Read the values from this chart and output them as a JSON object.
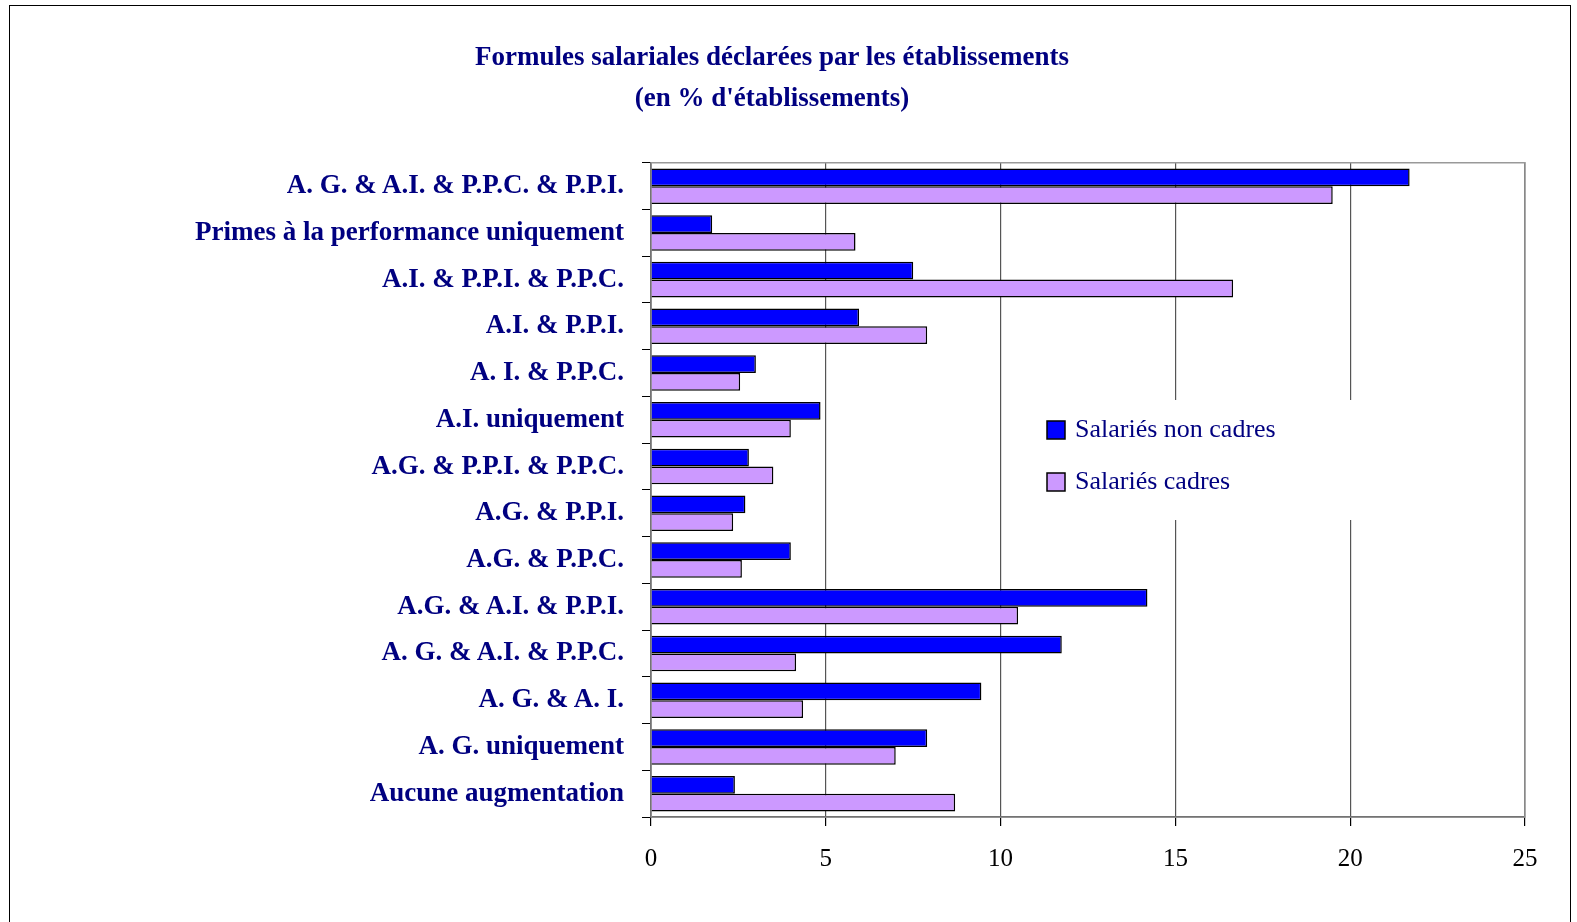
{
  "chart_data": {
    "type": "bar",
    "orientation": "horizontal",
    "title": "Formules salariales déclarées par les établissements",
    "subtitle": "(en % d'établissements)",
    "categories": [
      "A. G. & A.I. & P.P.C. & P.P.I.",
      "Primes à la performance uniquement",
      "A.I. & P.P.I. & P.P.C.",
      "A.I. & P.P.I.",
      "A. I. & P.P.C.",
      "A.I. uniquement",
      "A.G. & P.P.I. & P.P.C.",
      "A.G. & P.P.I.",
      "A.G. & P.P.C.",
      "A.G. & A.I. & P.P.I.",
      "A. G. & A.I. & P.P.C.",
      "A. G. & A. I.",
      "A. G. uniquement",
      "Aucune augmentation"
    ],
    "series": [
      {
        "name": "Salariés non cadres",
        "color": "#0000ff",
        "values": [
          21.7,
          1.75,
          7.5,
          5.95,
          3.0,
          4.85,
          2.8,
          2.7,
          4.0,
          14.2,
          11.75,
          9.45,
          7.9,
          2.4
        ]
      },
      {
        "name": "Salariés cadres",
        "color": "#cc99ff",
        "values": [
          19.5,
          5.85,
          16.65,
          7.9,
          2.55,
          4.0,
          3.5,
          2.35,
          2.6,
          10.5,
          4.15,
          4.35,
          7.0,
          8.7
        ]
      }
    ],
    "xlim": [
      0,
      25
    ],
    "xticks": [
      0,
      5,
      10,
      15,
      20,
      25
    ],
    "grid": "x",
    "legend": "right"
  }
}
